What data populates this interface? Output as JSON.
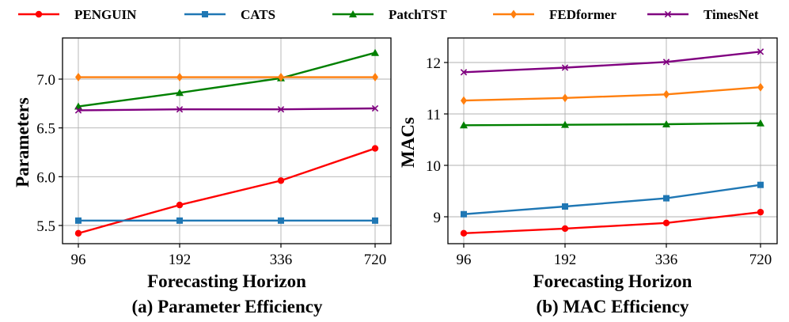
{
  "legend": [
    {
      "name": "PENGUIN",
      "color": "#ff0000",
      "marker": "circle"
    },
    {
      "name": "CATS",
      "color": "#1f77b4",
      "marker": "square"
    },
    {
      "name": "PatchTST",
      "color": "#008000",
      "marker": "triangle"
    },
    {
      "name": "FEDformer",
      "color": "#ff7f0e",
      "marker": "diamond"
    },
    {
      "name": "TimesNet",
      "color": "#800080",
      "marker": "x"
    }
  ],
  "chart_data": [
    {
      "type": "line",
      "caption": "(a) Parameter Efficiency",
      "xlabel": "Forecasting Horizon",
      "ylabel": "Parameters",
      "categories": [
        "96",
        "192",
        "336",
        "720"
      ],
      "yticks": [
        "5.5",
        "6.0",
        "6.5",
        "7.0"
      ],
      "ylim": [
        5.37,
        7.33
      ],
      "grid": true,
      "series": [
        {
          "name": "PENGUIN",
          "values": [
            5.42,
            5.71,
            5.96,
            6.29
          ]
        },
        {
          "name": "CATS",
          "values": [
            5.55,
            5.55,
            5.55,
            5.55
          ]
        },
        {
          "name": "PatchTST",
          "values": [
            6.72,
            6.86,
            7.01,
            7.27
          ]
        },
        {
          "name": "FEDformer",
          "values": [
            7.02,
            7.02,
            7.02,
            7.02
          ]
        },
        {
          "name": "TimesNet",
          "values": [
            6.68,
            6.69,
            6.69,
            6.7
          ]
        }
      ]
    },
    {
      "type": "line",
      "caption": "(b) MAC Efficiency",
      "xlabel": "Forecasting Horizon",
      "ylabel": "MACs",
      "categories": [
        "96",
        "192",
        "336",
        "720"
      ],
      "yticks": [
        "9",
        "10",
        "11",
        "12"
      ],
      "ylim": [
        8.47,
        12.37
      ],
      "grid": true,
      "series": [
        {
          "name": "PENGUIN",
          "values": [
            8.68,
            8.77,
            8.88,
            9.09
          ]
        },
        {
          "name": "CATS",
          "values": [
            9.05,
            9.2,
            9.36,
            9.62
          ]
        },
        {
          "name": "PatchTST",
          "values": [
            10.78,
            10.79,
            10.8,
            10.82
          ]
        },
        {
          "name": "FEDformer",
          "values": [
            11.26,
            11.31,
            11.38,
            11.52
          ]
        },
        {
          "name": "TimesNet",
          "values": [
            11.81,
            11.9,
            12.01,
            12.21
          ]
        }
      ]
    }
  ]
}
